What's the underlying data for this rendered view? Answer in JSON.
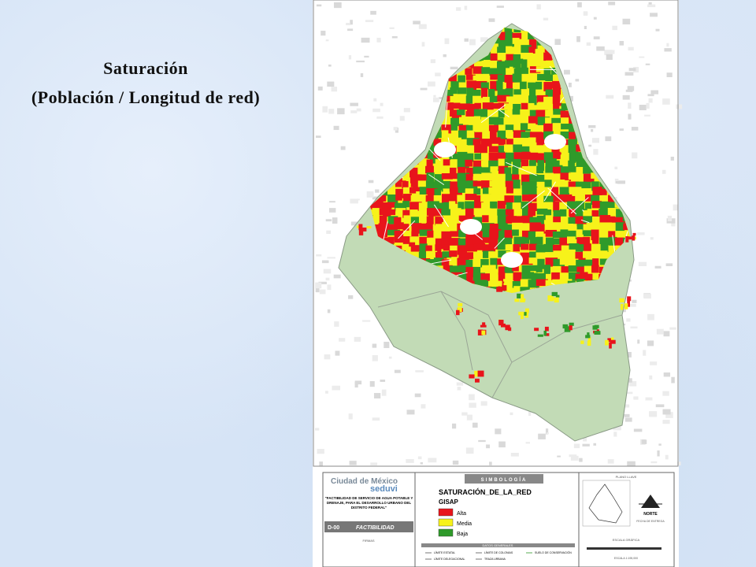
{
  "slide": {
    "title": "Saturación",
    "subtitle": "(Población / Longitud de red)"
  },
  "legend_box": {
    "logo": {
      "city": "Ciudad de México",
      "agency": "seduvi"
    },
    "project": "\"FACTIBILIDAD DE SERVICIO DE AGUA POTABLE Y DRENAJE, PARA EL DESARROLLO URBANO DEL DISTRITO FEDERAL\"",
    "sheet": "D-00",
    "sheet_title": "FACTIBILIDAD",
    "signatures": "FIRMAS",
    "heading": "SIMBOLOGÍA",
    "layer": "SATURACIÓN_DE_LA_RED",
    "source": "GISAP",
    "classes": [
      {
        "label": "Alta",
        "color": "#e8141b"
      },
      {
        "label": "Media",
        "color": "#f7f21a"
      },
      {
        "label": "Baja",
        "color": "#2f9a2a"
      }
    ],
    "general_heading": "DATOS GENERALES",
    "general_items": [
      "LÍMITE ESTATAL",
      "LÍMITE DELEGACIONAL",
      "LÍMITE DE COLONIAS",
      "TRAZA URBANA",
      "SUELO DE CONSERVACIÓN"
    ],
    "key_map": "PLANO LLAVE",
    "north": "NORTE",
    "date_label": "FECHA DE ENTREGA",
    "scale_label": "ESCALA GRÁFICA",
    "scale": "ESCALA 1:195,000"
  }
}
